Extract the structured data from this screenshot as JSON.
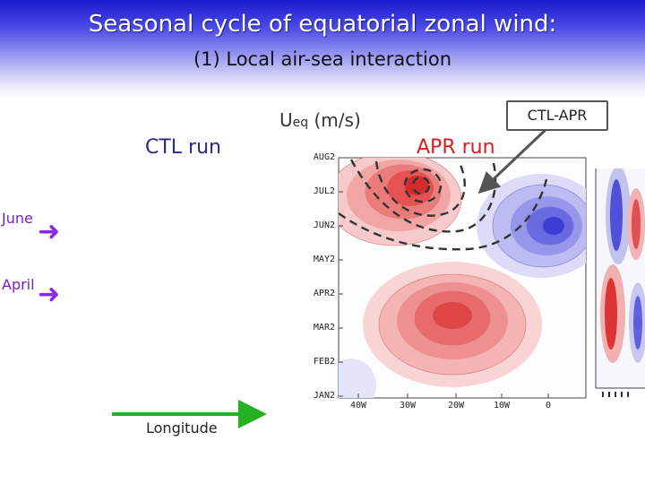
{
  "header": {
    "title": "Seasonal cycle of equatorial zonal wind:",
    "subtitle": "(1) Local air-sea interaction"
  },
  "labels": {
    "ctl_run": "CTL run",
    "ueq_main": "U",
    "ueq_sub": "eq",
    "ueq_units": " (m/s)",
    "apr_run": "APR run",
    "ctl_apr": "CTL-APR",
    "june": "June",
    "april": "April",
    "longitude": "Longitude"
  },
  "plot": {
    "y_ticks": [
      "AUG2",
      "JUL2",
      "JUN2",
      "MAY2",
      "APR2",
      "MAR2",
      "FEB2",
      "JAN2"
    ],
    "x_ticks": [
      "40W",
      "30W",
      "20W",
      "10W",
      "0"
    ]
  },
  "colors": {
    "header_blue": "#1a1ad0",
    "apr_red": "#d81e1e",
    "month_purple": "#7a1fbf",
    "longitude_green": "#22b222"
  }
}
